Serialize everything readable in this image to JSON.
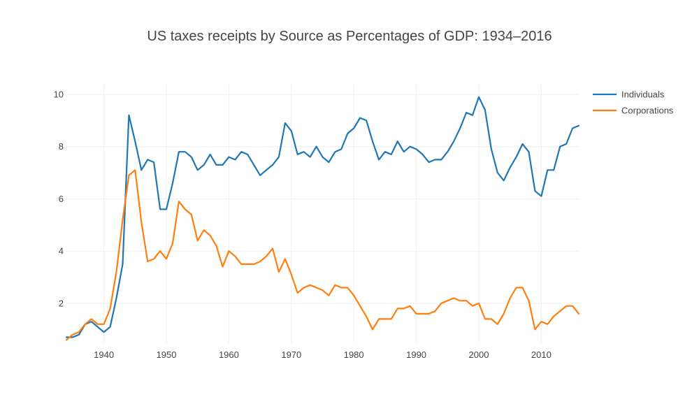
{
  "chart_data": {
    "type": "line",
    "title": "US taxes receipts by Source as Percentages of GDP: 1934–2016",
    "xlabel": "",
    "ylabel": "",
    "xlim": [
      1934,
      2016
    ],
    "ylim": [
      0.5,
      10.4
    ],
    "x_ticks": [
      1940,
      1950,
      1960,
      1970,
      1980,
      1990,
      2000,
      2010
    ],
    "y_ticks": [
      2,
      4,
      6,
      8,
      10
    ],
    "grid": true,
    "legend_position": "top-right",
    "x": [
      1934,
      1935,
      1936,
      1937,
      1938,
      1939,
      1940,
      1941,
      1942,
      1943,
      1944,
      1945,
      1946,
      1947,
      1948,
      1949,
      1950,
      1951,
      1952,
      1953,
      1954,
      1955,
      1956,
      1957,
      1958,
      1959,
      1960,
      1961,
      1962,
      1963,
      1964,
      1965,
      1966,
      1967,
      1968,
      1969,
      1970,
      1971,
      1972,
      1973,
      1974,
      1975,
      1976,
      1977,
      1978,
      1979,
      1980,
      1981,
      1982,
      1983,
      1984,
      1985,
      1986,
      1987,
      1988,
      1989,
      1990,
      1991,
      1992,
      1993,
      1994,
      1995,
      1996,
      1997,
      1998,
      1999,
      2000,
      2001,
      2002,
      2003,
      2004,
      2005,
      2006,
      2007,
      2008,
      2009,
      2010,
      2011,
      2012,
      2013,
      2014,
      2015,
      2016
    ],
    "series": [
      {
        "name": "Individuals",
        "color": "#1f77b4",
        "values": [
          0.7,
          0.7,
          0.8,
          1.2,
          1.3,
          1.1,
          0.9,
          1.1,
          2.2,
          3.5,
          9.2,
          8.2,
          7.1,
          7.5,
          7.4,
          5.6,
          5.6,
          6.6,
          7.8,
          7.8,
          7.6,
          7.1,
          7.3,
          7.7,
          7.3,
          7.3,
          7.6,
          7.5,
          7.8,
          7.7,
          7.3,
          6.9,
          7.1,
          7.3,
          7.6,
          8.9,
          8.6,
          7.7,
          7.8,
          7.6,
          8.0,
          7.6,
          7.4,
          7.8,
          7.9,
          8.5,
          8.7,
          9.1,
          9.0,
          8.2,
          7.5,
          7.8,
          7.7,
          8.2,
          7.8,
          8.0,
          7.9,
          7.7,
          7.4,
          7.5,
          7.5,
          7.8,
          8.2,
          8.7,
          9.3,
          9.2,
          9.9,
          9.4,
          7.9,
          7.0,
          6.7,
          7.2,
          7.6,
          8.1,
          7.8,
          6.3,
          6.1,
          7.1,
          7.1,
          8.0,
          8.1,
          8.7,
          8.8
        ]
      },
      {
        "name": "Corporations",
        "color": "#ff7f0e",
        "values": [
          0.6,
          0.8,
          0.9,
          1.2,
          1.4,
          1.2,
          1.2,
          1.8,
          3.2,
          5.2,
          6.9,
          7.1,
          5.1,
          3.6,
          3.7,
          4.0,
          3.7,
          4.3,
          5.9,
          5.6,
          5.4,
          4.4,
          4.8,
          4.6,
          4.2,
          3.4,
          4.0,
          3.8,
          3.5,
          3.5,
          3.5,
          3.6,
          3.8,
          4.1,
          3.2,
          3.7,
          3.1,
          2.4,
          2.6,
          2.7,
          2.6,
          2.5,
          2.3,
          2.7,
          2.6,
          2.6,
          2.3,
          1.9,
          1.5,
          1.0,
          1.4,
          1.4,
          1.4,
          1.8,
          1.8,
          1.9,
          1.6,
          1.6,
          1.6,
          1.7,
          2.0,
          2.1,
          2.2,
          2.1,
          2.1,
          1.9,
          2.0,
          1.4,
          1.4,
          1.2,
          1.6,
          2.2,
          2.6,
          2.6,
          2.1,
          1.0,
          1.3,
          1.2,
          1.5,
          1.7,
          1.9,
          1.9,
          1.6
        ]
      }
    ]
  }
}
